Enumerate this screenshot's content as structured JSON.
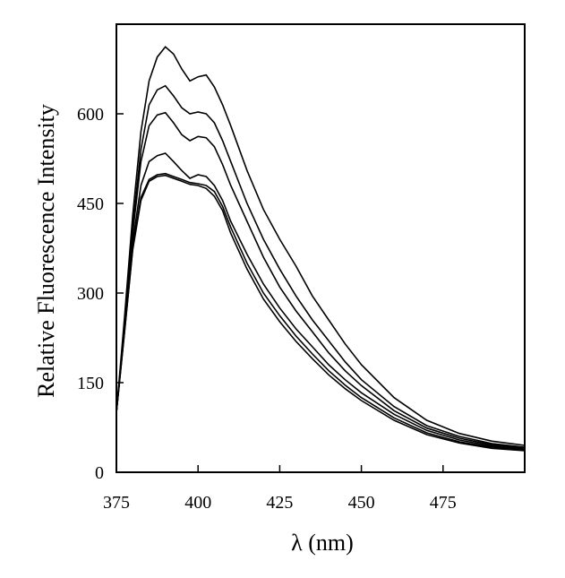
{
  "chart_data": {
    "type": "line",
    "title": "",
    "xlabel": "λ (nm)",
    "ylabel": "Relative Fluorescence Intensity",
    "xlim": [
      375,
      500
    ],
    "ylim": [
      0,
      750
    ],
    "xticks": [
      375,
      400,
      425,
      450,
      475
    ],
    "yticks": [
      0,
      150,
      300,
      450,
      600
    ],
    "grid": false,
    "legend": "none",
    "line_color": "#000000",
    "x": [
      375,
      377.5,
      380,
      382.5,
      385,
      387.5,
      390,
      392.5,
      395,
      397.5,
      400,
      402.5,
      405,
      407.5,
      410,
      415,
      420,
      425,
      430,
      435,
      440,
      445,
      450,
      460,
      470,
      480,
      490,
      500
    ],
    "series": [
      {
        "values": [
          100,
          260,
          430,
          570,
          655,
          695,
          712,
          700,
          675,
          655,
          662,
          665,
          645,
          615,
          580,
          505,
          440,
          390,
          345,
          295,
          255,
          215,
          180,
          125,
          87,
          65,
          52,
          45
        ]
      },
      {
        "values": [
          100,
          250,
          410,
          540,
          615,
          640,
          647,
          630,
          610,
          600,
          603,
          600,
          585,
          555,
          520,
          450,
          390,
          340,
          295,
          255,
          220,
          185,
          155,
          110,
          78,
          60,
          48,
          42
        ]
      },
      {
        "values": [
          100,
          245,
          400,
          520,
          580,
          598,
          602,
          585,
          565,
          555,
          562,
          560,
          545,
          515,
          480,
          420,
          360,
          310,
          270,
          235,
          200,
          170,
          145,
          103,
          74,
          57,
          46,
          40
        ]
      },
      {
        "values": [
          100,
          240,
          385,
          480,
          520,
          530,
          534,
          520,
          505,
          492,
          498,
          495,
          480,
          455,
          420,
          365,
          315,
          275,
          240,
          210,
          180,
          155,
          133,
          97,
          70,
          54,
          44,
          38
        ]
      },
      {
        "values": [
          100,
          235,
          375,
          460,
          490,
          498,
          500,
          495,
          490,
          485,
          483,
          480,
          470,
          445,
          410,
          350,
          300,
          262,
          228,
          198,
          170,
          146,
          125,
          91,
          66,
          51,
          42,
          37
        ]
      },
      {
        "values": [
          100,
          235,
          372,
          455,
          487,
          495,
          497,
          492,
          487,
          482,
          480,
          475,
          462,
          438,
          400,
          340,
          290,
          252,
          219,
          190,
          163,
          140,
          120,
          87,
          63,
          49,
          40,
          36
        ]
      }
    ]
  }
}
